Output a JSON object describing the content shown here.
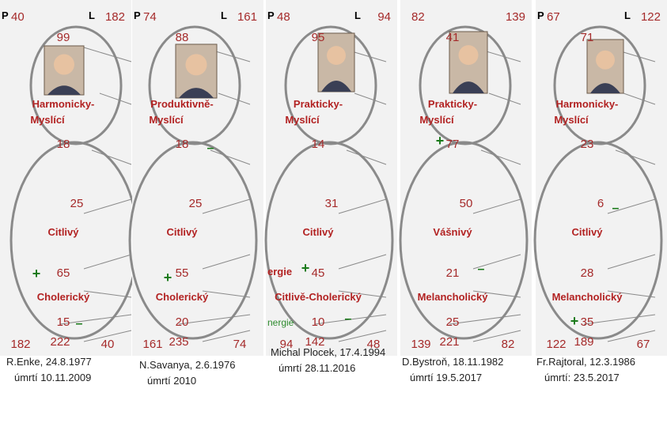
{
  "panels": [
    {
      "p_label": "P",
      "p_value": "40",
      "l_label": "L",
      "l_value": "182",
      "top_number": "99",
      "top_label_1": "Harmonicky-",
      "top_label_2": "Myslící",
      "mid_number": "18",
      "upper_inner": "25",
      "upper_label": "Citlivý",
      "lower_inner": "65",
      "lower_label": "Cholerický",
      "bottom_inner": "15",
      "base_left": "182",
      "base_center": "222",
      "base_right": "40",
      "caption_1": "R.Enke,     24.8.1977",
      "caption_2": "úmrtí     10.11.2009"
    },
    {
      "p_label": "P",
      "p_value": "74",
      "l_label": "L",
      "l_value": "161",
      "top_number": "88",
      "top_label_1": "Produktivně-",
      "top_label_2": "Myslící",
      "mid_number": "18",
      "upper_inner": "25",
      "upper_label": "Citlivý",
      "lower_inner": "55",
      "lower_label": "Cholerický",
      "bottom_inner": "20",
      "base_left": "161",
      "base_center": "235",
      "base_right": "74",
      "caption_1": "N.Savanya, 2.6.1976",
      "caption_2": "úmrtí     2010"
    },
    {
      "p_label": "P",
      "p_value": "48",
      "l_label": "L",
      "l_value": "94",
      "top_number": "95",
      "top_label_1": "Prakticky-",
      "top_label_2": "Myslící",
      "mid_number": "14",
      "upper_inner": "31",
      "upper_label": "Citlivý",
      "lower_inner": "45",
      "lower_label": "Citlivě-Cholerický",
      "bottom_inner": "10",
      "base_left": "94",
      "base_center": "142",
      "base_right": "48",
      "side_fragment": "ergie",
      "energy_fragment": "nergie",
      "caption_1": "Michal Plocek, 17.4.1994",
      "caption_2": "úmrtí        28.11.2016"
    },
    {
      "p_label": "",
      "p_value": "82",
      "l_label": "",
      "l_value": "139",
      "top_number": "41",
      "top_label_1": "Prakticky-",
      "top_label_2": "Myslící",
      "mid_number": "77",
      "upper_inner": "50",
      "upper_label": "Vášnivý",
      "lower_inner": "21",
      "lower_label": "Melancholický",
      "bottom_inner": "25",
      "base_left": "139",
      "base_center": "221",
      "base_right": "82",
      "caption_1": "D.Bystroň, 18.11.1982",
      "caption_2": "úmrtí  19.5.2017"
    },
    {
      "p_label": "P",
      "p_value": "67",
      "l_label": "L",
      "l_value": "122",
      "top_number": "71",
      "top_label_1": "Harmonicky-",
      "top_label_2": "Myslící",
      "mid_number": "23",
      "upper_inner": "6",
      "upper_label": "Citlivý",
      "lower_inner": "28",
      "lower_label": "Melancholický",
      "bottom_inner": "35",
      "base_left": "122",
      "base_center": "189",
      "base_right": "67",
      "caption_1": "Fr.Rajtoral, 12.3.1986",
      "caption_2": "úmrtí: 23.5.2017"
    }
  ],
  "colors": {
    "number": "#a52a2a",
    "label": "#b22222",
    "outline": "#8a8a8a",
    "panel_bg": "#f2f2f2",
    "sign": "#1a7a1a"
  },
  "icons": [
    "photo-portrait"
  ]
}
